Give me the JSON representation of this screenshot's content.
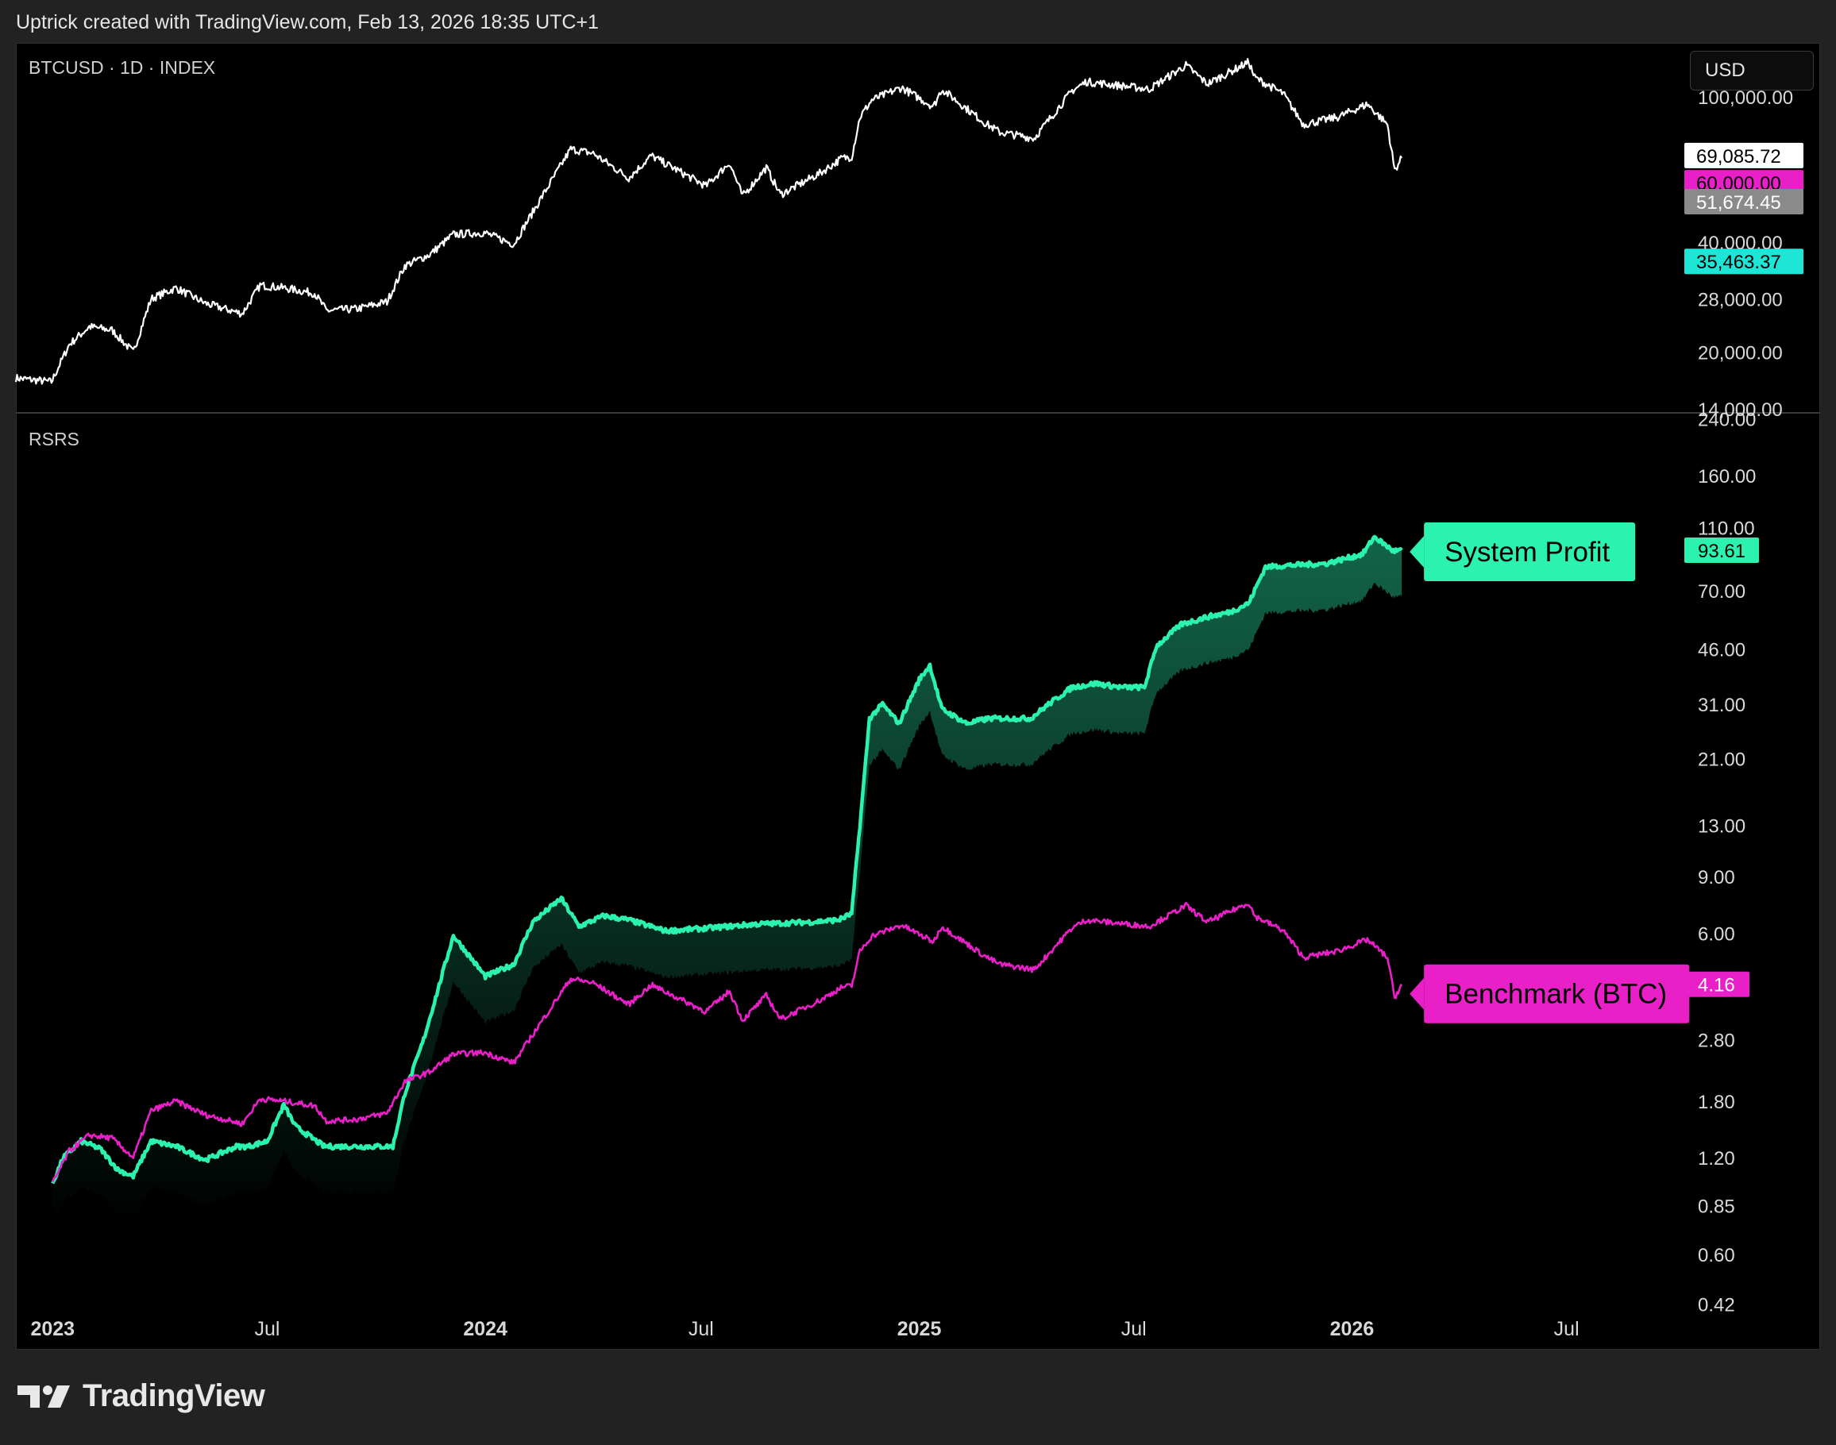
{
  "header": {
    "caption": "Uptrick created with TradingView.com, Feb 13, 2026 18:35 UTC+1"
  },
  "top_pane": {
    "label": "BTCUSD · 1D · INDEX",
    "currency": "USD"
  },
  "bottom_pane": {
    "label": "RSRS"
  },
  "branding": {
    "name": "TradingView"
  },
  "colors": {
    "background": "#000000",
    "price": "#ffffff",
    "system_profit": "#2cf2b0",
    "benchmark": "#e91fc8",
    "gray_badge": "#8a8a8a",
    "cyan_badge": "#1ee6d6",
    "axis_text": "#d9d9d9"
  },
  "chart_data": [
    {
      "type": "line",
      "pane": "top",
      "scale": "log",
      "x_axis_range": [
        "2022-12-01",
        "2026-10-01"
      ],
      "y_range": [
        14000,
        135000
      ],
      "y_ticks": [
        "100,000.00",
        "40,000.00",
        "28,000.00",
        "20,000.00",
        "14,000.00"
      ],
      "y_tick_values": [
        100000,
        40000,
        28000,
        20000,
        14000
      ],
      "price_badges": [
        {
          "text": "69,085.72",
          "value": 69085.72,
          "style": "white"
        },
        {
          "text": "60,000.00",
          "value": 60000,
          "style": "magenta"
        },
        {
          "text": "51,674.45",
          "value": 51674.45,
          "style": "gray"
        },
        {
          "text": "35,463.37",
          "value": 35463.37,
          "style": "cyan"
        }
      ],
      "series": [
        {
          "x": [
            "2022-12-01",
            "2022-12-31",
            "2023-01-15",
            "2023-02-01",
            "2023-02-20",
            "2023-03-10",
            "2023-03-25",
            "2023-04-15",
            "2023-05-10",
            "2023-06-10",
            "2023-06-25",
            "2023-07-15",
            "2023-08-10",
            "2023-08-20",
            "2023-09-15",
            "2023-10-10",
            "2023-10-25",
            "2023-11-15",
            "2023-12-05",
            "2023-12-31",
            "2024-01-25",
            "2024-02-15",
            "2024-03-13",
            "2024-04-01",
            "2024-05-01",
            "2024-05-20",
            "2024-07-05",
            "2024-07-25",
            "2024-08-05",
            "2024-08-25",
            "2024-09-06",
            "2024-10-10",
            "2024-10-28",
            "2024-11-05",
            "2024-11-12",
            "2024-11-22",
            "2024-12-17",
            "2025-01-13",
            "2025-01-20",
            "2025-02-25",
            "2025-03-10",
            "2025-04-08",
            "2025-05-10",
            "2025-05-22",
            "2025-07-14",
            "2025-08-14",
            "2025-09-01",
            "2025-10-06",
            "2025-10-11",
            "2025-11-04",
            "2025-11-21",
            "2025-12-20",
            "2026-01-14",
            "2026-01-31",
            "2026-02-06",
            "2026-02-12"
          ],
          "y": [
            17000,
            16600,
            21000,
            23500,
            23000,
            20000,
            28000,
            30000,
            27200,
            25500,
            30500,
            30000,
            29000,
            26000,
            26300,
            27500,
            34500,
            37000,
            42000,
            42500,
            39500,
            51500,
            72000,
            70000,
            60000,
            69000,
            57000,
            66000,
            53500,
            64000,
            54000,
            62000,
            68000,
            68500,
            88000,
            98000,
            106000,
            94000,
            105000,
            85000,
            80000,
            77000,
            104000,
            110000,
            105000,
            122000,
            108500,
            124500,
            113000,
            102000,
            84000,
            88000,
            95500,
            84000,
            63000,
            68000
          ]
        }
      ]
    },
    {
      "type": "line",
      "pane": "bottom",
      "scale": "log",
      "x_axis_range": [
        "2022-12-01",
        "2026-10-01"
      ],
      "x_ticks": [
        {
          "label": "2023",
          "date": "2023-01-01",
          "bold": true
        },
        {
          "label": "Jul",
          "date": "2023-07-01",
          "bold": false
        },
        {
          "label": "2024",
          "date": "2024-01-01",
          "bold": true
        },
        {
          "label": "Jul",
          "date": "2024-07-01",
          "bold": false
        },
        {
          "label": "2025",
          "date": "2025-01-01",
          "bold": true
        },
        {
          "label": "Jul",
          "date": "2025-07-01",
          "bold": false
        },
        {
          "label": "2026",
          "date": "2026-01-01",
          "bold": true
        },
        {
          "label": "Jul",
          "date": "2026-07-01",
          "bold": false
        }
      ],
      "y_range": [
        0.38,
        245
      ],
      "y_ticks": [
        "240.00",
        "160.00",
        "110.00",
        "70.00",
        "46.00",
        "31.00",
        "21.00",
        "13.00",
        "9.00",
        "6.00",
        "2.80",
        "1.80",
        "1.20",
        "0.85",
        "0.60",
        "0.42"
      ],
      "y_tick_values": [
        240,
        160,
        110,
        70,
        46,
        31,
        21,
        13,
        9,
        6,
        2.8,
        1.8,
        1.2,
        0.85,
        0.6,
        0.42
      ],
      "series": [
        {
          "name": "System Profit",
          "end_value": "93.61",
          "x": [
            "2023-01-01",
            "2023-01-10",
            "2023-01-25",
            "2023-02-10",
            "2023-02-25",
            "2023-03-10",
            "2023-03-25",
            "2023-04-15",
            "2023-05-10",
            "2023-06-05",
            "2023-06-15",
            "2023-07-01",
            "2023-07-15",
            "2023-07-25",
            "2023-08-18",
            "2023-10-15",
            "2023-10-25",
            "2023-11-10",
            "2023-12-05",
            "2024-01-01",
            "2024-01-25",
            "2024-02-10",
            "2024-03-05",
            "2024-03-20",
            "2024-04-10",
            "2024-05-01",
            "2024-06-01",
            "2024-07-01",
            "2024-08-15",
            "2024-10-01",
            "2024-10-25",
            "2024-11-05",
            "2024-11-12",
            "2024-11-20",
            "2024-12-01",
            "2024-12-15",
            "2025-01-01",
            "2025-01-10",
            "2025-01-20",
            "2025-02-10",
            "2025-03-01",
            "2025-04-05",
            "2025-04-20",
            "2025-05-10",
            "2025-05-30",
            "2025-06-20",
            "2025-07-10",
            "2025-07-20",
            "2025-08-10",
            "2025-09-01",
            "2025-09-20",
            "2025-10-06",
            "2025-10-20",
            "2025-11-10",
            "2025-12-10",
            "2026-01-10",
            "2026-01-20",
            "2026-02-05",
            "2026-02-12"
          ],
          "y": [
            1.0,
            1.2,
            1.35,
            1.28,
            1.1,
            1.05,
            1.35,
            1.3,
            1.18,
            1.3,
            1.3,
            1.35,
            1.75,
            1.5,
            1.3,
            1.3,
            1.9,
            2.8,
            5.9,
            4.4,
            4.8,
            6.5,
            7.7,
            6.3,
            6.8,
            6.6,
            6.1,
            6.2,
            6.4,
            6.5,
            6.6,
            6.9,
            13,
            28,
            31,
            27,
            37,
            41,
            30,
            27,
            28,
            28,
            31,
            35,
            36,
            35,
            35,
            47,
            55,
            58,
            60,
            64,
            83,
            84,
            85,
            91,
            103,
            93,
            93.61
          ]
        },
        {
          "name": "Benchmark (BTC)",
          "end_value": "4.16",
          "x": [
            "2023-01-01",
            "2023-01-15",
            "2023-02-01",
            "2023-02-20",
            "2023-03-10",
            "2023-03-25",
            "2023-04-15",
            "2023-05-10",
            "2023-06-10",
            "2023-06-25",
            "2023-07-15",
            "2023-08-10",
            "2023-08-20",
            "2023-09-15",
            "2023-10-10",
            "2023-10-25",
            "2023-11-15",
            "2023-12-05",
            "2023-12-31",
            "2024-01-25",
            "2024-02-15",
            "2024-03-13",
            "2024-04-01",
            "2024-05-01",
            "2024-05-20",
            "2024-07-05",
            "2024-07-25",
            "2024-08-05",
            "2024-08-25",
            "2024-09-06",
            "2024-10-10",
            "2024-10-28",
            "2024-11-05",
            "2024-11-12",
            "2024-11-22",
            "2024-12-17",
            "2025-01-13",
            "2025-01-20",
            "2025-02-25",
            "2025-03-10",
            "2025-04-08",
            "2025-05-10",
            "2025-05-22",
            "2025-07-14",
            "2025-08-14",
            "2025-09-01",
            "2025-10-06",
            "2025-10-11",
            "2025-11-04",
            "2025-11-21",
            "2025-12-20",
            "2026-01-14",
            "2026-01-31",
            "2026-02-06",
            "2026-02-12"
          ],
          "y": [
            1.0,
            1.26,
            1.41,
            1.38,
            1.2,
            1.68,
            1.8,
            1.63,
            1.53,
            1.83,
            1.8,
            1.74,
            1.56,
            1.58,
            1.65,
            2.07,
            2.22,
            2.52,
            2.55,
            2.37,
            3.09,
            4.33,
            4.2,
            3.6,
            4.14,
            3.42,
            3.96,
            3.21,
            3.84,
            3.24,
            3.72,
            4.08,
            4.11,
            5.28,
            5.88,
            6.36,
            5.64,
            6.3,
            5.1,
            4.8,
            4.62,
            6.24,
            6.6,
            6.3,
            7.32,
            6.5,
            7.47,
            6.78,
            6.12,
            5.04,
            5.28,
            5.73,
            5.04,
            3.78,
            4.16
          ]
        }
      ]
    }
  ]
}
